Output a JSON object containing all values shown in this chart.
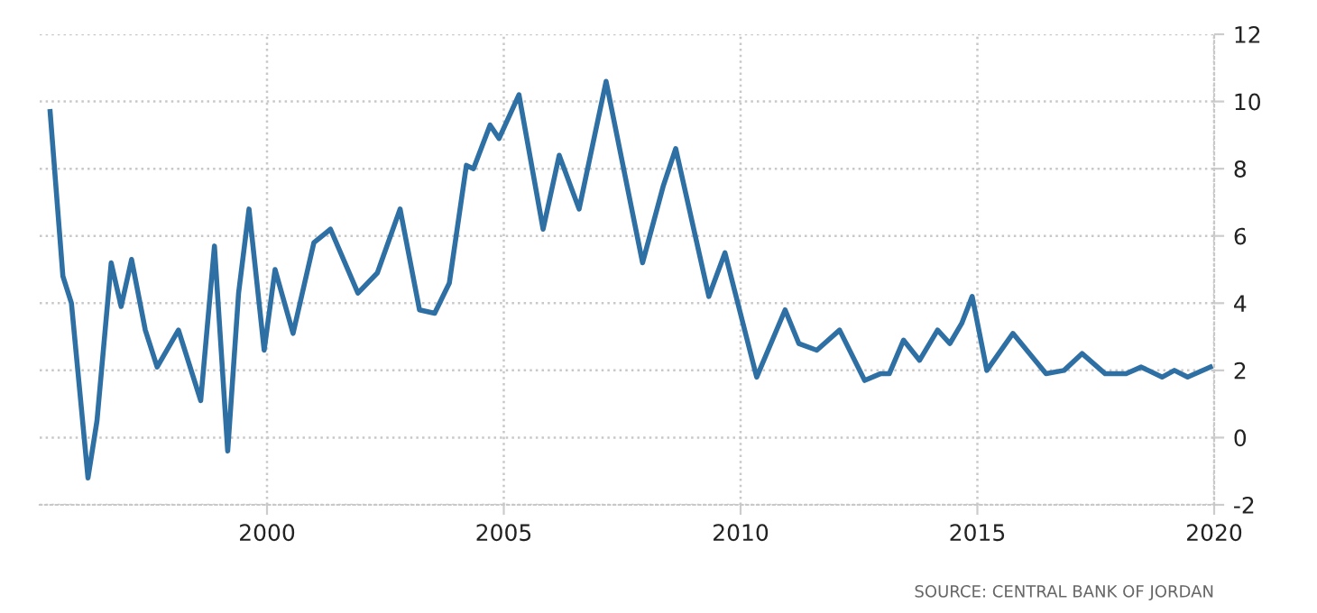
{
  "chart_data": {
    "type": "line",
    "x": [
      1995.42,
      1995.69,
      1995.87,
      1996.22,
      1996.41,
      1996.71,
      1996.92,
      1997.14,
      1997.43,
      1997.68,
      1998.13,
      1998.6,
      1998.89,
      1999.17,
      1999.4,
      1999.62,
      1999.94,
      2000.17,
      2000.55,
      2000.99,
      2001.34,
      2001.92,
      2002.33,
      2002.81,
      2003.22,
      2003.54,
      2003.85,
      2004.21,
      2004.36,
      2004.71,
      2004.9,
      2005.32,
      2005.83,
      2006.17,
      2006.59,
      2007.16,
      2007.93,
      2008.37,
      2008.63,
      2009.33,
      2009.67,
      2010.34,
      2010.94,
      2011.23,
      2011.61,
      2012.09,
      2012.62,
      2012.95,
      2013.14,
      2013.44,
      2013.78,
      2014.16,
      2014.42,
      2014.67,
      2014.89,
      2015.2,
      2015.75,
      2016.45,
      2016.83,
      2017.21,
      2017.7,
      2018.14,
      2018.46,
      2018.9,
      2019.16,
      2019.44,
      2019.92
    ],
    "series": [
      {
        "color": "#2e6fa4",
        "values": [
          9.7,
          4.8,
          4.0,
          -1.2,
          0.5,
          5.2,
          3.9,
          5.3,
          3.2,
          2.1,
          3.2,
          1.1,
          5.7,
          -0.4,
          4.3,
          6.8,
          2.6,
          5.0,
          3.1,
          5.8,
          6.2,
          4.3,
          4.9,
          6.8,
          3.8,
          3.7,
          4.6,
          8.1,
          8.0,
          9.3,
          8.9,
          10.2,
          6.2,
          8.4,
          6.8,
          10.6,
          5.2,
          7.5,
          8.6,
          4.2,
          5.5,
          1.8,
          3.8,
          2.8,
          2.6,
          3.2,
          1.7,
          1.9,
          1.9,
          2.9,
          2.3,
          3.2,
          2.8,
          3.4,
          4.2,
          2.0,
          3.1,
          1.9,
          2.0,
          2.5,
          1.9,
          1.9,
          2.1,
          1.8,
          2.0,
          1.8,
          2.1
        ]
      }
    ],
    "xlim": [
      1995.2,
      2020
    ],
    "ylim": [
      -2,
      12
    ],
    "xticks": [
      2000,
      2005,
      2010,
      2015,
      2020
    ],
    "yticks": [
      -2,
      0,
      2,
      4,
      6,
      8,
      10,
      12
    ],
    "grid": true,
    "line_style": "solid",
    "annotations": [
      "SOURCE: CENTRAL BANK OF JORDAN"
    ]
  }
}
